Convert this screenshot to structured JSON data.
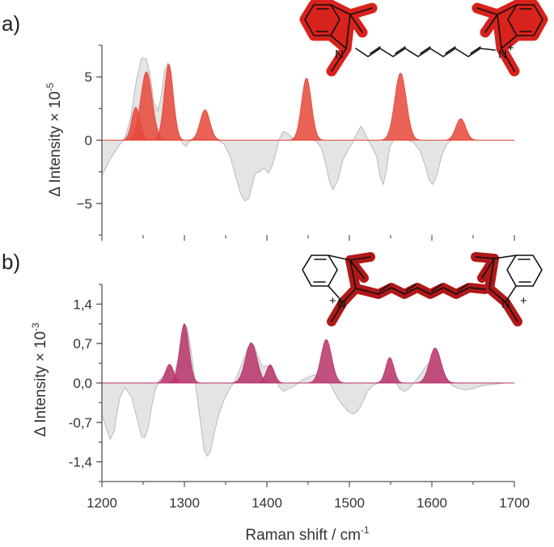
{
  "chart_data": [
    {
      "panel": "a)",
      "type": "area",
      "ylabel": "Δ Intensity × 10",
      "ylabel_exp": "-5",
      "ylim": [
        -7.5,
        7.5
      ],
      "xlim": [
        1200,
        1700
      ],
      "yticks": [
        {
          "v": 5,
          "label": "5"
        },
        {
          "v": 0,
          "label": "0"
        },
        {
          "v": -5,
          "label": "−5"
        }
      ],
      "fill_color": "#e8473a",
      "background_trace": [
        [
          1200,
          -2.8
        ],
        [
          1210,
          -1.5
        ],
        [
          1220,
          -0.5
        ],
        [
          1228,
          0.2
        ],
        [
          1235,
          1.8
        ],
        [
          1242,
          4.8
        ],
        [
          1248,
          6.5
        ],
        [
          1254,
          6.4
        ],
        [
          1258,
          5.3
        ],
        [
          1263,
          3.0
        ],
        [
          1268,
          2.3
        ],
        [
          1272,
          3.5
        ],
        [
          1276,
          5.5
        ],
        [
          1280,
          6.1
        ],
        [
          1284,
          5.0
        ],
        [
          1289,
          2.0
        ],
        [
          1294,
          0.2
        ],
        [
          1298,
          -0.3
        ],
        [
          1302,
          -0.5
        ],
        [
          1306,
          -0.1
        ],
        [
          1312,
          0.1
        ],
        [
          1320,
          0.1
        ],
        [
          1330,
          0.05
        ],
        [
          1340,
          0
        ],
        [
          1348,
          -0.3
        ],
        [
          1355,
          -1.2
        ],
        [
          1362,
          -2.8
        ],
        [
          1368,
          -4.2
        ],
        [
          1373,
          -4.8
        ],
        [
          1378,
          -4.6
        ],
        [
          1382,
          -3.6
        ],
        [
          1386,
          -2.6
        ],
        [
          1391,
          -2.5
        ],
        [
          1396,
          -2.2
        ],
        [
          1402,
          -2.6
        ],
        [
          1406,
          -2.1
        ],
        [
          1411,
          -1.0
        ],
        [
          1415,
          0.1
        ],
        [
          1420,
          0.7
        ],
        [
          1426,
          0.5
        ],
        [
          1432,
          0.1
        ],
        [
          1438,
          0
        ],
        [
          1450,
          0.1
        ],
        [
          1460,
          -0.1
        ],
        [
          1466,
          -0.6
        ],
        [
          1471,
          -1.8
        ],
        [
          1476,
          -3.3
        ],
        [
          1480,
          -3.9
        ],
        [
          1486,
          -3.2
        ],
        [
          1492,
          -1.6
        ],
        [
          1498,
          -0.8
        ],
        [
          1503,
          -0.3
        ],
        [
          1508,
          0.4
        ],
        [
          1514,
          1.1
        ],
        [
          1518,
          0.7
        ],
        [
          1522,
          0.1
        ],
        [
          1528,
          -0.6
        ],
        [
          1533,
          -1.3
        ],
        [
          1537,
          -2.8
        ],
        [
          1541,
          -3.5
        ],
        [
          1545,
          -2.4
        ],
        [
          1549,
          -0.5
        ],
        [
          1554,
          0
        ],
        [
          1562,
          0
        ],
        [
          1570,
          0
        ],
        [
          1578,
          -0.2
        ],
        [
          1585,
          -0.8
        ],
        [
          1592,
          -2.0
        ],
        [
          1597,
          -3.2
        ],
        [
          1601,
          -3.5
        ],
        [
          1606,
          -2.8
        ],
        [
          1612,
          -1.2
        ],
        [
          1618,
          -0.3
        ],
        [
          1624,
          0
        ],
        [
          1640,
          0
        ]
      ],
      "peaks": [
        {
          "center": 1241,
          "height": 2.6,
          "width": 5
        },
        {
          "center": 1254,
          "height": 5.4,
          "width": 7
        },
        {
          "center": 1281,
          "height": 6.0,
          "width": 5.5
        },
        {
          "center": 1325,
          "height": 2.4,
          "width": 6
        },
        {
          "center": 1448,
          "height": 4.9,
          "width": 6
        },
        {
          "center": 1562,
          "height": 5.3,
          "width": 7
        },
        {
          "center": 1635,
          "height": 1.7,
          "width": 6
        }
      ]
    },
    {
      "panel": "b)",
      "type": "area",
      "ylabel": "Δ Intensity × 10",
      "ylabel_exp": "-3",
      "ylim": [
        -1.75,
        1.75
      ],
      "xlim": [
        1200,
        1700
      ],
      "yticks": [
        {
          "v": 1.4,
          "label": "1,4"
        },
        {
          "v": 0.7,
          "label": "0,7"
        },
        {
          "v": 0,
          "label": "0,0"
        },
        {
          "v": -0.7,
          "label": "-0,7"
        },
        {
          "v": -1.4,
          "label": "-1,4"
        }
      ],
      "fill_color": "#b8326a",
      "background_trace": [
        [
          1200,
          -0.55
        ],
        [
          1205,
          -0.8
        ],
        [
          1210,
          -1.0
        ],
        [
          1215,
          -0.85
        ],
        [
          1218,
          -0.55
        ],
        [
          1222,
          -0.25
        ],
        [
          1228,
          -0.08
        ],
        [
          1236,
          -0.25
        ],
        [
          1242,
          -0.6
        ],
        [
          1248,
          -0.95
        ],
        [
          1252,
          -0.97
        ],
        [
          1256,
          -0.8
        ],
        [
          1260,
          -0.45
        ],
        [
          1265,
          -0.1
        ],
        [
          1270,
          0.05
        ],
        [
          1276,
          0.15
        ],
        [
          1280,
          0.25
        ],
        [
          1284,
          0.28
        ],
        [
          1288,
          0.18
        ],
        [
          1292,
          0.4
        ],
        [
          1296,
          0.8
        ],
        [
          1300,
          1.03
        ],
        [
          1303,
          1.0
        ],
        [
          1307,
          0.7
        ],
        [
          1311,
          0.25
        ],
        [
          1315,
          -0.2
        ],
        [
          1320,
          -0.75
        ],
        [
          1324,
          -1.2
        ],
        [
          1328,
          -1.3
        ],
        [
          1332,
          -1.2
        ],
        [
          1336,
          -0.9
        ],
        [
          1342,
          -0.55
        ],
        [
          1348,
          -0.3
        ],
        [
          1355,
          -0.1
        ],
        [
          1362,
          0.05
        ],
        [
          1370,
          0.35
        ],
        [
          1376,
          0.6
        ],
        [
          1381,
          0.72
        ],
        [
          1385,
          0.65
        ],
        [
          1390,
          0.45
        ],
        [
          1394,
          0.3
        ],
        [
          1399,
          0.3
        ],
        [
          1404,
          0.3
        ],
        [
          1409,
          0.15
        ],
        [
          1414,
          -0.05
        ],
        [
          1420,
          -0.15
        ],
        [
          1427,
          -0.1
        ],
        [
          1434,
          -0.05
        ],
        [
          1442,
          0.05
        ],
        [
          1450,
          0.1
        ],
        [
          1458,
          0.15
        ],
        [
          1463,
          0.1
        ],
        [
          1467,
          0.05
        ],
        [
          1472,
          0.05
        ],
        [
          1478,
          -0.05
        ],
        [
          1485,
          -0.25
        ],
        [
          1492,
          -0.4
        ],
        [
          1498,
          -0.5
        ],
        [
          1504,
          -0.55
        ],
        [
          1510,
          -0.5
        ],
        [
          1516,
          -0.35
        ],
        [
          1522,
          -0.15
        ],
        [
          1528,
          -0.05
        ],
        [
          1535,
          0
        ],
        [
          1543,
          0.05
        ],
        [
          1550,
          0.15
        ],
        [
          1555,
          0.05
        ],
        [
          1561,
          -0.1
        ],
        [
          1567,
          -0.15
        ],
        [
          1572,
          -0.1
        ],
        [
          1578,
          0
        ],
        [
          1586,
          0.15
        ],
        [
          1593,
          0.3
        ],
        [
          1600,
          0.4
        ],
        [
          1606,
          0.35
        ],
        [
          1612,
          0.2
        ],
        [
          1618,
          0.05
        ],
        [
          1625,
          -0.05
        ],
        [
          1633,
          -0.1
        ],
        [
          1641,
          -0.12
        ],
        [
          1650,
          -0.1
        ],
        [
          1660,
          -0.05
        ],
        [
          1672,
          -0.03
        ],
        [
          1688,
          0
        ]
      ],
      "peaks": [
        {
          "center": 1282,
          "height": 0.33,
          "width": 5
        },
        {
          "center": 1300,
          "height": 1.05,
          "width": 5.5
        },
        {
          "center": 1381,
          "height": 0.71,
          "width": 7
        },
        {
          "center": 1404,
          "height": 0.32,
          "width": 5
        },
        {
          "center": 1472,
          "height": 0.77,
          "width": 6.5
        },
        {
          "center": 1549,
          "height": 0.45,
          "width": 5
        },
        {
          "center": 1604,
          "height": 0.62,
          "width": 7
        }
      ]
    }
  ],
  "x_axis": {
    "label": "Raman shift / cm",
    "label_exp": "-1",
    "ticks": [
      1200,
      1300,
      1400,
      1500,
      1600,
      1700
    ]
  },
  "molecule": {
    "n_plus": "N",
    "plus": "+",
    "n_neutral": "N",
    "highlight_a": "#d8221c",
    "highlight_b": "#b01818"
  }
}
